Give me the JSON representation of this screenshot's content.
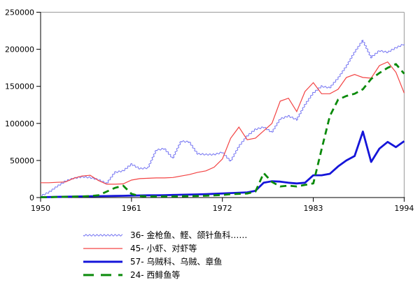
{
  "chart_data": {
    "type": "line",
    "title": "",
    "xlabel": "",
    "ylabel": "",
    "xlim": [
      1950,
      1994
    ],
    "ylim": [
      0,
      250000
    ],
    "grid": false,
    "legend_position": "bottom",
    "x_ticks": [
      1950,
      1961,
      1972,
      1983,
      1994
    ],
    "y_ticks": [
      0,
      50000,
      100000,
      150000,
      200000,
      250000
    ],
    "y_tick_labels": [
      "0",
      "50000",
      "100000",
      "150000",
      "200000",
      "250000"
    ],
    "x": [
      1950,
      1951,
      1952,
      1953,
      1954,
      1955,
      1956,
      1957,
      1958,
      1959,
      1960,
      1961,
      1962,
      1963,
      1964,
      1965,
      1966,
      1967,
      1968,
      1969,
      1970,
      1971,
      1972,
      1973,
      1974,
      1975,
      1976,
      1977,
      1978,
      1979,
      1980,
      1981,
      1982,
      1983,
      1984,
      1985,
      1986,
      1987,
      1988,
      1989,
      1990,
      1991,
      1992,
      1993,
      1994
    ],
    "series": [
      {
        "name": "36- 金枪鱼、鲣、颌针鱼科……",
        "color": "#7474f2",
        "style": "wavy-thin",
        "values": [
          2000,
          7000,
          15000,
          22000,
          26000,
          28000,
          27000,
          24000,
          19000,
          34000,
          36000,
          45000,
          39000,
          40000,
          64000,
          66000,
          53000,
          76000,
          75000,
          59000,
          58000,
          58000,
          61000,
          49000,
          69000,
          83000,
          92000,
          95000,
          88000,
          106000,
          110000,
          105000,
          125000,
          141000,
          150000,
          148000,
          161000,
          177000,
          196000,
          212000,
          189000,
          198000,
          196000,
          202000,
          207000
        ]
      },
      {
        "name": "45- 小虾、对虾等",
        "color": "#f34343",
        "style": "solid-thin",
        "values": [
          20000,
          20000,
          20500,
          21000,
          26000,
          29000,
          30000,
          23000,
          18000,
          18000,
          18500,
          23500,
          25500,
          26000,
          26500,
          26500,
          27000,
          29000,
          31000,
          34000,
          36000,
          41000,
          52000,
          80000,
          95000,
          78000,
          80000,
          90000,
          100000,
          130000,
          134000,
          116000,
          143000,
          155000,
          140000,
          140000,
          146000,
          162000,
          166000,
          162000,
          161000,
          178000,
          183000,
          169000,
          141000
        ]
      },
      {
        "name": "57- 乌贼科、乌贼、章鱼",
        "color": "#1515d9",
        "style": "solid-thick",
        "values": [
          500,
          700,
          900,
          1100,
          1300,
          1500,
          1700,
          1900,
          2000,
          2200,
          2400,
          2600,
          2800,
          3000,
          3000,
          3200,
          3500,
          3800,
          4000,
          4200,
          4500,
          5000,
          5500,
          6000,
          6500,
          7000,
          9000,
          20000,
          22000,
          21500,
          20000,
          19000,
          20000,
          30000,
          30000,
          32000,
          42000,
          50000,
          56000,
          89000,
          48000,
          66000,
          75000,
          68000,
          76000
        ]
      },
      {
        "name": "24- 西鲱鱼等",
        "color": "#0a8a0a",
        "style": "dashed-thick",
        "values": [
          500,
          500,
          800,
          1000,
          1200,
          1500,
          2000,
          3000,
          8000,
          13000,
          16000,
          5000,
          2000,
          1500,
          1500,
          1500,
          1500,
          1800,
          2000,
          2200,
          2500,
          3000,
          3500,
          4500,
          5000,
          5500,
          8000,
          33000,
          21000,
          15000,
          16000,
          15000,
          17000,
          19000,
          65000,
          110000,
          132000,
          137000,
          140000,
          146000,
          160000,
          168000,
          175000,
          180000,
          167000
        ]
      }
    ]
  }
}
